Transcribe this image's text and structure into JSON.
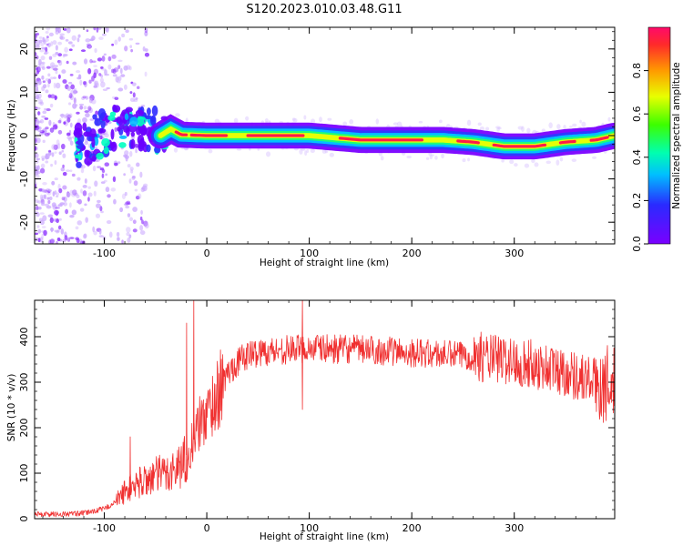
{
  "title": "S120.2023.010.03.48.G11",
  "colors": {
    "snr_line": "#f03030",
    "ridge_core": "#ff1a4a",
    "axis": "#000000"
  },
  "chart_data": [
    {
      "type": "heatmap",
      "xlabel": "Height of straight line (km)",
      "ylabel": "Frequency (Hz)",
      "xlim": [
        -168,
        398
      ],
      "ylim": [
        -25,
        25
      ],
      "xticks": [
        -100,
        0,
        100,
        200,
        300
      ],
      "xtick_labels": [
        "-100",
        "0",
        "100",
        "200",
        "300"
      ],
      "yticks": [
        -20,
        -10,
        0,
        10,
        20
      ],
      "ytick_labels": [
        "-20",
        "-10",
        "0",
        "10",
        "20"
      ],
      "colorbar": {
        "label": "Normalized spectral amplitude",
        "range": [
          0,
          1
        ],
        "ticks": [
          0,
          0.2,
          0.4,
          0.6,
          0.8
        ],
        "tick_labels": [
          "0.0",
          "0.2",
          "0.4",
          "0.6",
          "0.8"
        ],
        "colormap": "rainbow (purple to red)"
      },
      "ridge": {
        "x": [
          -120,
          -100,
          -80,
          -60,
          -45,
          -35,
          -25,
          0,
          50,
          100,
          150,
          200,
          230,
          260,
          290,
          320,
          350,
          380,
          398
        ],
        "frequency": [
          -2,
          0.5,
          2.5,
          2,
          0,
          1.5,
          0.2,
          0,
          0,
          0,
          -1,
          -1,
          -1,
          -1.5,
          -2.5,
          -2.5,
          -1.5,
          -1,
          0
        ]
      }
    },
    {
      "type": "line",
      "xlabel": "Height of straight line (km)",
      "ylabel": "SNR (10 * v/v)",
      "xlim": [
        -168,
        398
      ],
      "ylim": [
        0,
        480
      ],
      "xticks": [
        -100,
        0,
        100,
        200,
        300
      ],
      "xtick_labels": [
        "-100",
        "0",
        "100",
        "200",
        "300"
      ],
      "yticks": [
        0,
        100,
        200,
        300,
        400
      ],
      "ytick_labels": [
        "0",
        "100",
        "200",
        "300",
        "400"
      ],
      "series": [
        {
          "x": [
            -168,
            -140,
            -120,
            -100,
            -90,
            -80,
            -70,
            -60,
            -50,
            -40,
            -30,
            -25,
            -20,
            -15,
            -10,
            -5,
            0,
            5,
            10,
            15,
            20,
            30,
            40,
            50,
            60,
            80,
            100,
            120,
            150,
            180,
            200,
            220,
            240,
            260,
            280,
            300,
            320,
            340,
            360,
            380,
            398
          ],
          "values": [
            10,
            10,
            12,
            22,
            35,
            60,
            75,
            85,
            95,
            100,
            110,
            120,
            140,
            160,
            195,
            215,
            230,
            250,
            270,
            295,
            318,
            345,
            360,
            365,
            368,
            372,
            375,
            373,
            372,
            368,
            365,
            362,
            360,
            358,
            352,
            345,
            338,
            328,
            315,
            300,
            290
          ],
          "spikes": [
            {
              "x": -75,
              "value": 180
            },
            {
              "x": -20,
              "value": 430
            },
            {
              "x": -13,
              "value": 480
            },
            {
              "x": 93,
              "value": 480
            },
            {
              "x": 93,
              "value": 240
            }
          ]
        }
      ]
    }
  ]
}
